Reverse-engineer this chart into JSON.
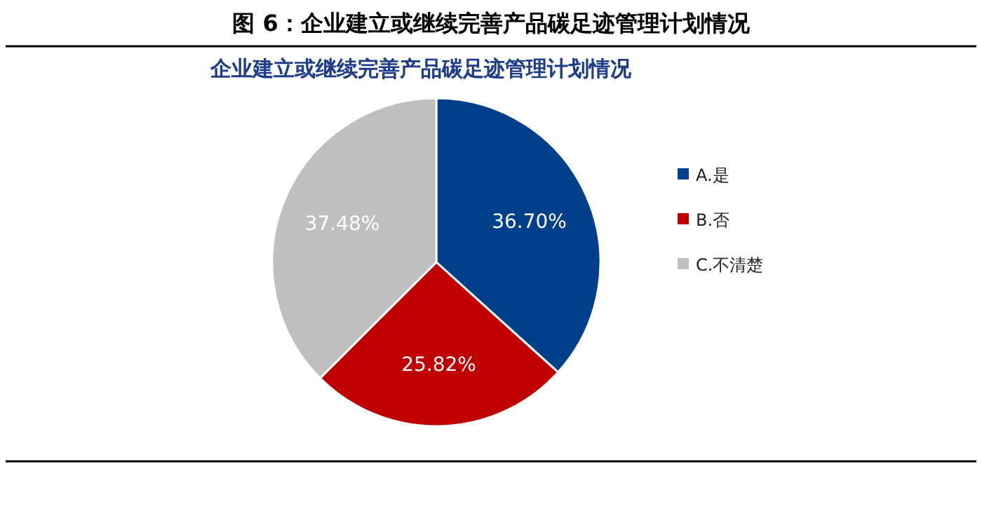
{
  "chart_data": {
    "type": "pie",
    "title": "图 6：企业建立或继续完善产品碳足迹管理计划情况",
    "subtitle": "企业建立或继续完善产品碳足迹管理计划情况",
    "categories": [
      "A.是",
      "B.否",
      "C.不清楚"
    ],
    "values": [
      36.7,
      25.82,
      37.48
    ],
    "value_labels": [
      "36.70%",
      "25.82%",
      "37.48%"
    ],
    "colors": [
      "#003f8a",
      "#c00000",
      "#bfbfbf"
    ],
    "legend": "right"
  }
}
